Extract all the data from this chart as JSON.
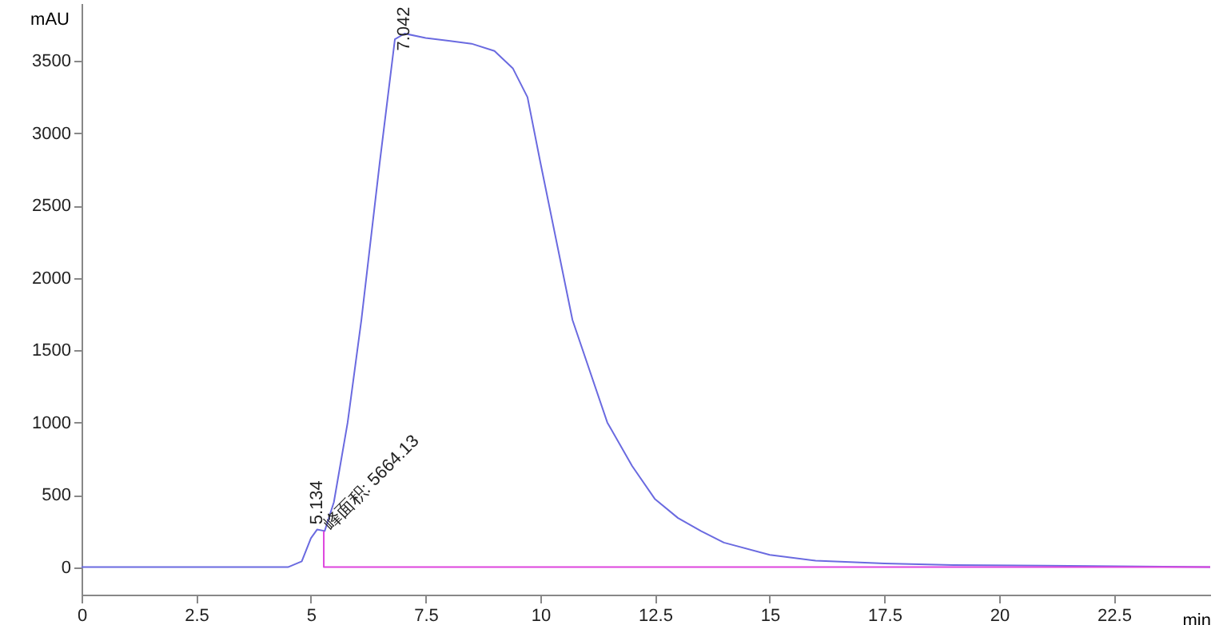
{
  "chart_data": {
    "type": "line",
    "xlabel": "min",
    "ylabel": "mAU",
    "xlim": [
      0,
      24.6
    ],
    "ylim": [
      -190,
      3900
    ],
    "xticks": [
      0,
      2.5,
      5,
      7.5,
      10,
      12.5,
      15,
      17.5,
      20,
      22.5
    ],
    "yticks": [
      0,
      500,
      1000,
      1500,
      2000,
      2500,
      3000,
      3500
    ],
    "grid": false,
    "marker": "none",
    "line_style": "solid",
    "series": [
      {
        "color": "#6a6ae0",
        "x": [
          0,
          4.5,
          4.8,
          5.0,
          5.134,
          5.3,
          5.5,
          5.8,
          6.1,
          6.5,
          6.83,
          7.042,
          7.5,
          8,
          8.5,
          9,
          9.4,
          9.72,
          10,
          10.7,
          11.46,
          12,
          12.5,
          13,
          13.5,
          14,
          15,
          16,
          17.5,
          19,
          21,
          24.6
        ],
        "values": [
          0,
          0,
          40,
          200,
          260,
          250,
          450,
          1000,
          1710,
          2800,
          3650,
          3690,
          3660,
          3640,
          3620,
          3570,
          3450,
          3250,
          2800,
          1710,
          1000,
          700,
          470,
          340,
          250,
          170,
          85,
          45,
          25,
          15,
          10,
          0
        ]
      },
      {
        "color": "#dd44dd",
        "x": [
          5.28,
          5.28,
          24.6
        ],
        "values": [
          250,
          0,
          0
        ]
      }
    ],
    "annotations": [
      {
        "text": "7.042",
        "x": 7.042,
        "y": 3690
      },
      {
        "text": "5.134",
        "x": 5.134,
        "y": 262
      },
      {
        "text": "峰面积: 5664.13",
        "x": 5.28,
        "y": 250
      }
    ]
  }
}
